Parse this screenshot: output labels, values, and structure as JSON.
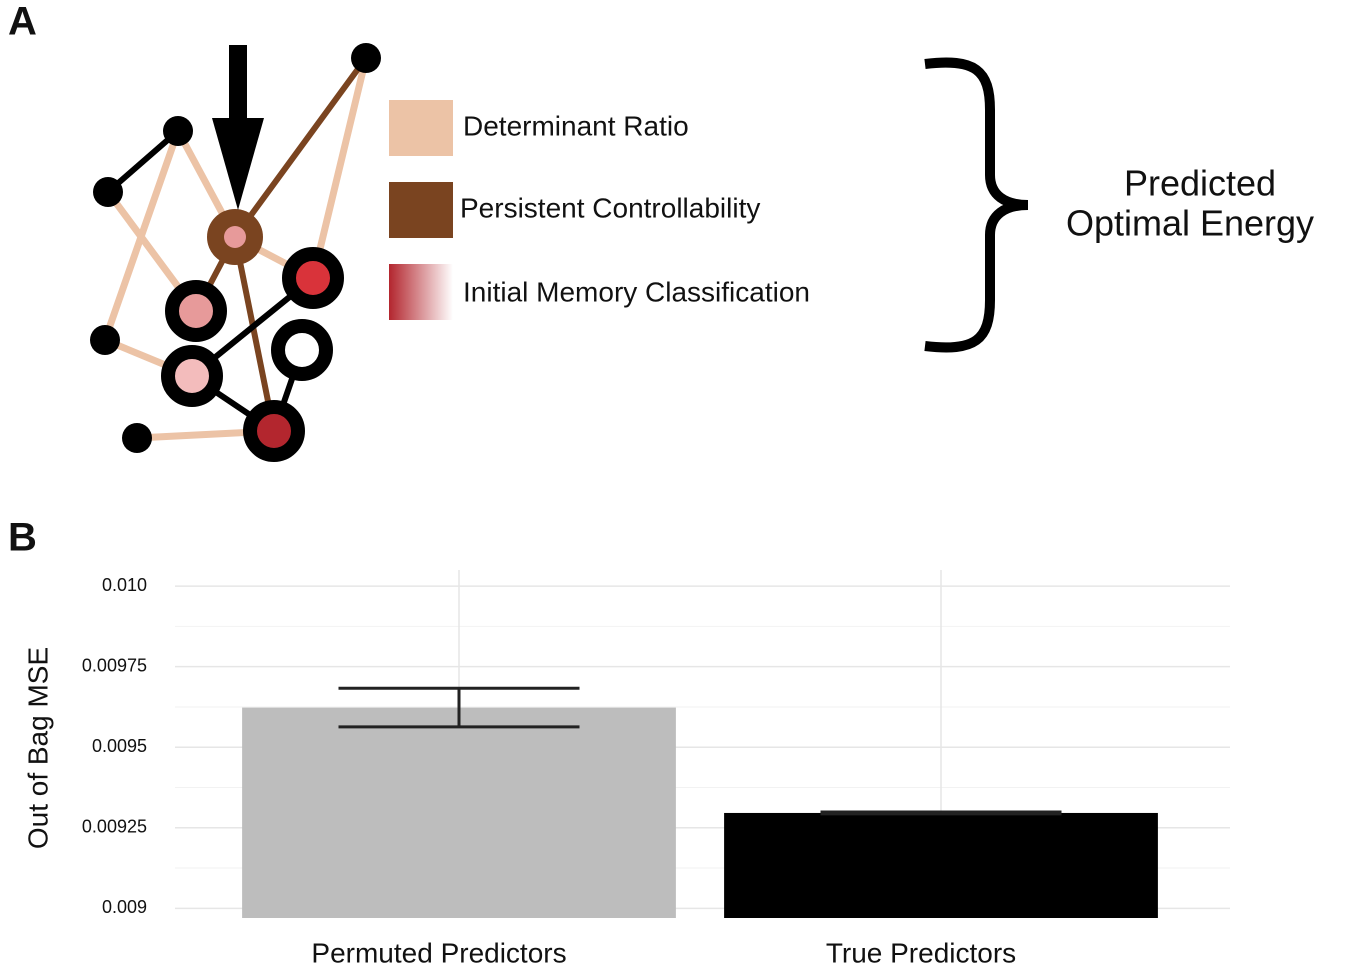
{
  "panel_a": {
    "label": "A",
    "legend": [
      "Determinant Ratio",
      "Persistent Controllability",
      "Initial Memory Classification"
    ],
    "outcome": [
      "Predicted",
      "Optimal Energy"
    ]
  },
  "panel_b": {
    "label": "B"
  },
  "chart_data": {
    "type": "bar",
    "y_label": "Out of Bag MSE",
    "categories": [
      "Permuted Predictors",
      "True Predictors"
    ],
    "values": [
      0.009623,
      0.009296
    ],
    "errors": [
      6e-05,
      3e-06
    ],
    "colors": [
      "#bdbdbd",
      "#000000"
    ],
    "ylim": [
      0.00897,
      0.01005
    ],
    "yticks": [
      0.009,
      0.00925,
      0.0095,
      0.00975,
      {
        "value": 0.01,
        "label": "0.010"
      }
    ],
    "grid": true
  }
}
